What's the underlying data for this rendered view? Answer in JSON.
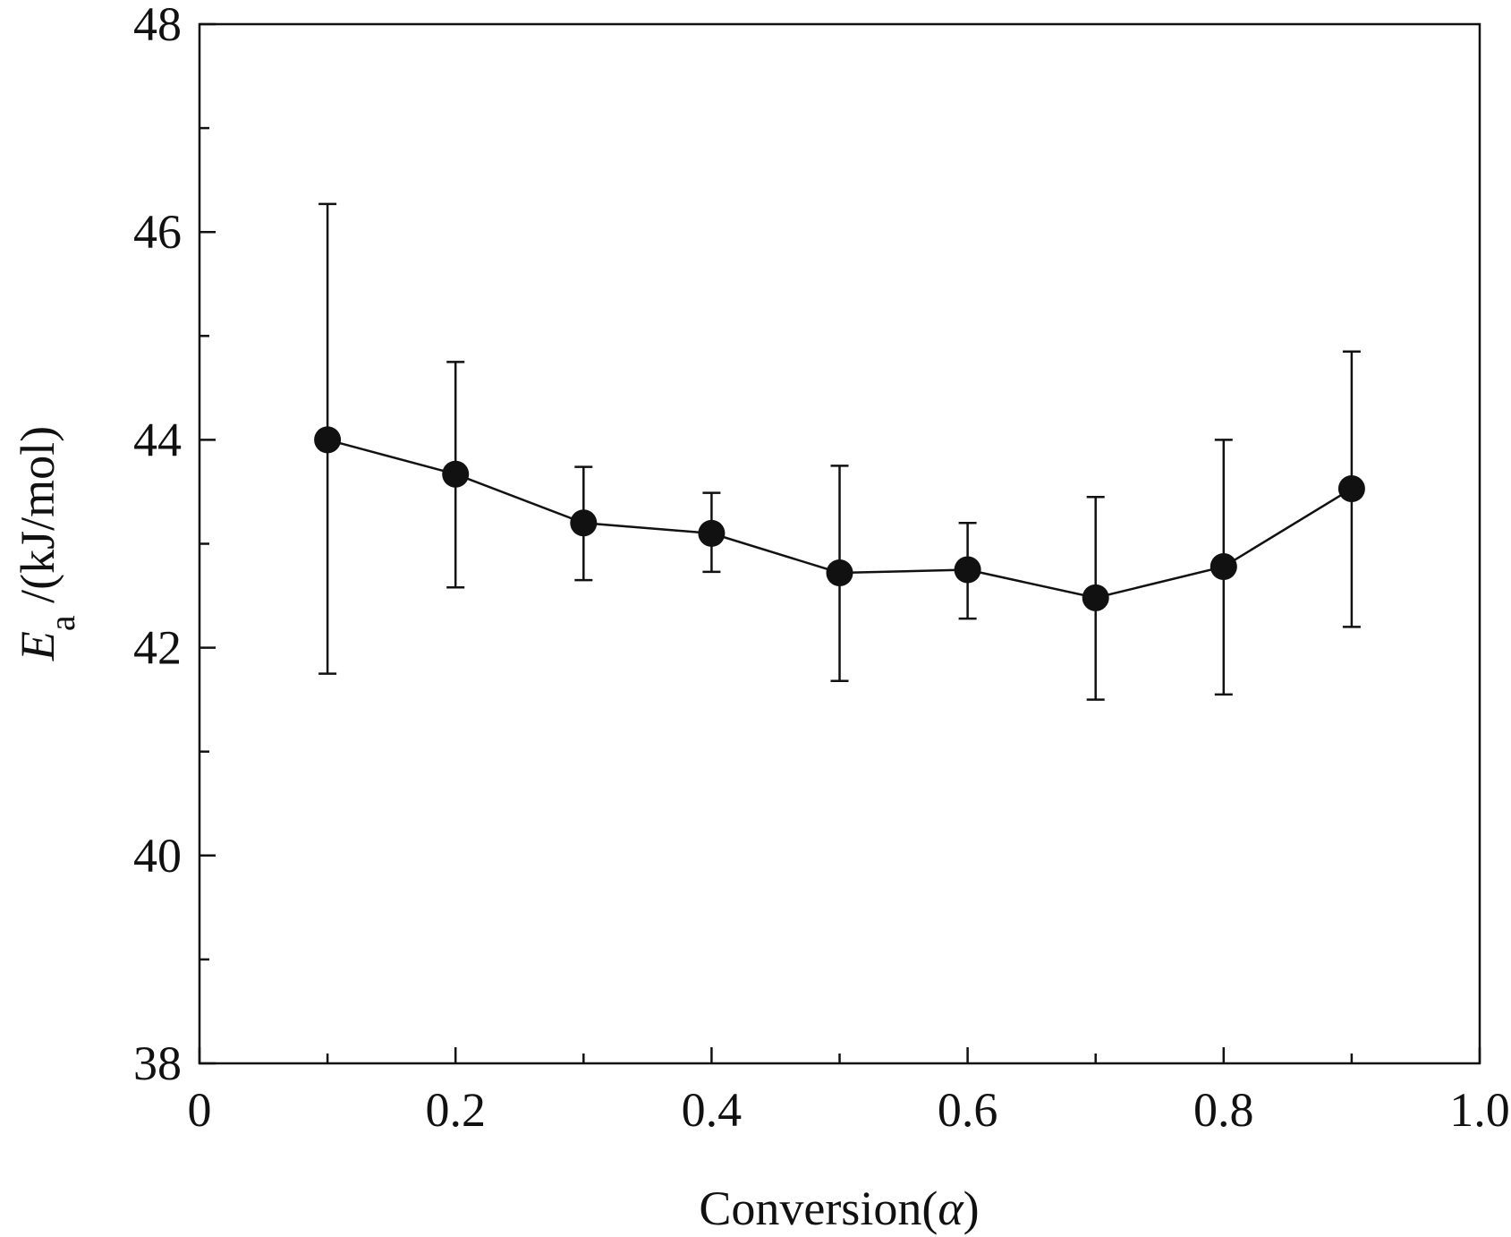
{
  "chart_data": {
    "type": "scatter",
    "title": "",
    "xlabel": "Conversion(",
    "xlabel_symbol": "α",
    "xlabel_close": ")",
    "ylabel_symbol": "E",
    "ylabel_subscript": "a",
    "ylabel_unit": " /(kJ/mol)",
    "xlim": [
      0,
      1.0
    ],
    "ylim": [
      38,
      48
    ],
    "x_ticks": [
      0,
      0.2,
      0.4,
      0.6,
      0.8,
      1.0
    ],
    "x_tick_labels": [
      "0",
      "0.2",
      "0.4",
      "0.6",
      "0.8",
      "1.0"
    ],
    "x_minor_ticks": [
      0.1,
      0.3,
      0.5,
      0.7,
      0.9
    ],
    "y_ticks": [
      38,
      40,
      42,
      44,
      46,
      48
    ],
    "y_tick_labels": [
      "38",
      "40",
      "42",
      "44",
      "46",
      "48"
    ],
    "y_minor_ticks": [
      39,
      41,
      43,
      45,
      47
    ],
    "grid": false,
    "series": [
      {
        "name": "Ea",
        "marker": "filled-circle",
        "line": true,
        "x": [
          0.1,
          0.2,
          0.3,
          0.4,
          0.5,
          0.6,
          0.7,
          0.8,
          0.9
        ],
        "y": [
          44.0,
          43.67,
          43.2,
          43.1,
          42.72,
          42.75,
          42.48,
          42.78,
          43.53
        ],
        "err_upper": [
          46.27,
          44.75,
          43.74,
          43.49,
          43.75,
          43.2,
          43.45,
          44.0,
          44.85
        ],
        "err_lower": [
          41.75,
          42.58,
          42.65,
          42.73,
          41.68,
          42.28,
          41.5,
          41.55,
          42.2
        ]
      }
    ]
  }
}
